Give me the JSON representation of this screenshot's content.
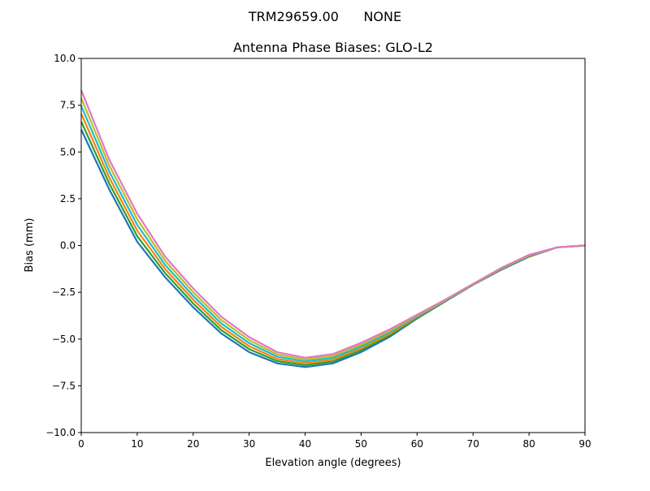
{
  "chart_data": {
    "type": "line",
    "suptitle": "TRM29659.00      NONE",
    "title": "Antenna Phase Biases: GLO-L2",
    "xlabel": "Elevation angle (degrees)",
    "ylabel": "Bias (mm)",
    "xlim": [
      0,
      90
    ],
    "ylim": [
      -10,
      10
    ],
    "xticks": [
      0,
      10,
      20,
      30,
      40,
      50,
      60,
      70,
      80,
      90
    ],
    "yticks": [
      -10.0,
      -7.5,
      -5.0,
      -2.5,
      0.0,
      2.5,
      5.0,
      7.5,
      10.0
    ],
    "ytick_labels": [
      "−10.0",
      "−7.5",
      "−5.0",
      "−2.5",
      "0.0",
      "2.5",
      "5.0",
      "7.5",
      "10.0"
    ],
    "grid": false,
    "x": [
      0,
      5,
      10,
      15,
      20,
      25,
      30,
      35,
      40,
      45,
      50,
      55,
      60,
      65,
      70,
      75,
      80,
      85,
      90
    ],
    "series": [
      {
        "color": "#1f77b4",
        "values": [
          6.2,
          3.0,
          0.2,
          -1.7,
          -3.3,
          -4.7,
          -5.7,
          -6.3,
          -6.5,
          -6.3,
          -5.7,
          -4.9,
          -3.9,
          -3.0,
          -2.1,
          -1.3,
          -0.6,
          -0.1,
          0
        ]
      },
      {
        "color": "#2ca02c",
        "values": [
          6.62,
          3.32,
          0.5,
          -1.48,
          -3.1,
          -4.52,
          -5.54,
          -6.18,
          -6.4,
          -6.2,
          -5.6,
          -4.82,
          -3.86,
          -2.98,
          -2.09,
          -1.28,
          -0.58,
          -0.1,
          0
        ]
      },
      {
        "color": "#ff7f0e",
        "values": [
          7.04,
          3.64,
          0.8,
          -1.26,
          -2.9,
          -4.34,
          -5.38,
          -6.06,
          -6.3,
          -6.1,
          -5.5,
          -4.74,
          -3.82,
          -2.96,
          -2.08,
          -1.26,
          -0.56,
          -0.1,
          0
        ]
      },
      {
        "color": "#17becf",
        "values": [
          7.46,
          3.96,
          1.1,
          -1.04,
          -2.7,
          -4.16,
          -5.22,
          -5.94,
          -6.2,
          -6.0,
          -5.4,
          -4.66,
          -3.78,
          -2.94,
          -2.07,
          -1.24,
          -0.54,
          -0.1,
          0
        ]
      },
      {
        "color": "#bcbd22",
        "values": [
          7.88,
          4.28,
          1.4,
          -0.82,
          -2.5,
          -3.98,
          -5.06,
          -5.82,
          -6.1,
          -5.9,
          -5.3,
          -4.58,
          -3.74,
          -2.92,
          -2.06,
          -1.22,
          -0.52,
          -0.1,
          0
        ]
      },
      {
        "color": "#e377c2",
        "values": [
          8.3,
          4.6,
          1.7,
          -0.6,
          -2.3,
          -3.8,
          -4.9,
          -5.7,
          -6.0,
          -5.8,
          -5.2,
          -4.5,
          -3.7,
          -2.9,
          -2.05,
          -1.2,
          -0.5,
          -0.1,
          0
        ]
      }
    ]
  }
}
